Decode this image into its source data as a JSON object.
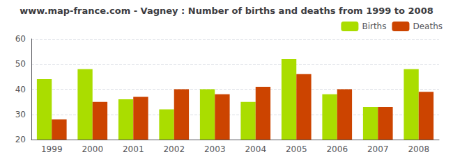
{
  "chart_data": {
    "type": "bar",
    "title": "www.map-france.com - Vagney : Number of births and deaths from 1999 to 2008",
    "categories": [
      "1999",
      "2000",
      "2001",
      "2002",
      "2003",
      "2004",
      "2005",
      "2006",
      "2007",
      "2008"
    ],
    "series": [
      {
        "name": "Births",
        "color": "#aadd00",
        "values": [
          44,
          48,
          36,
          32,
          40,
          35,
          52,
          38,
          33,
          48
        ]
      },
      {
        "name": "Deaths",
        "color": "#cc4400",
        "values": [
          28,
          35,
          37,
          40,
          38,
          41,
          46,
          40,
          33,
          39
        ]
      }
    ],
    "ylim": [
      20,
      60
    ],
    "yticks": [
      20,
      30,
      40,
      50,
      60
    ],
    "grid": true,
    "legend": "upper right"
  }
}
